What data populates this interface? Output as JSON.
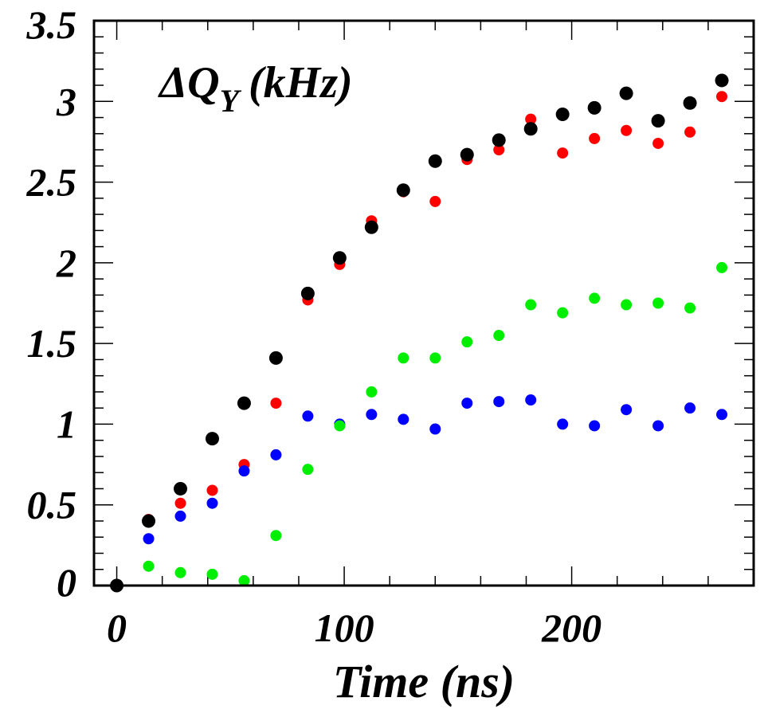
{
  "chart_data": {
    "type": "scatter",
    "title": "ΔQY (kHz)",
    "title_parts": {
      "delta": "Δ",
      "symbol": "Q",
      "subscript": "Y",
      "unit": "(kHz)"
    },
    "xlabel": "Time (ns)",
    "ylabel": "",
    "xlim": [
      -10,
      280
    ],
    "ylim": [
      0,
      3.5
    ],
    "xticks": [
      0,
      100,
      200
    ],
    "xtick_labels": [
      "0",
      "100",
      "200"
    ],
    "yticks": [
      0,
      0.5,
      1,
      1.5,
      2,
      2.5,
      3,
      3.5
    ],
    "ytick_labels": [
      "0",
      "0.5",
      "1",
      "1.5",
      "2",
      "2.5",
      "3",
      "3.5"
    ],
    "grid": false,
    "x": [
      0,
      14,
      28,
      42,
      56,
      70,
      84,
      98,
      112,
      126,
      140,
      154,
      168,
      182,
      196,
      210,
      224,
      238,
      252,
      266
    ],
    "series": [
      {
        "color": "#ff0000",
        "values": [
          0,
          0.41,
          0.51,
          0.59,
          0.75,
          1.13,
          1.77,
          1.99,
          2.26,
          2.44,
          2.38,
          2.64,
          2.7,
          2.89,
          2.68,
          2.77,
          2.82,
          2.74,
          2.81,
          3.03
        ]
      },
      {
        "color": "#0000ff",
        "values": [
          0,
          0.29,
          0.43,
          0.51,
          0.71,
          0.81,
          1.05,
          1.0,
          1.06,
          1.03,
          0.97,
          1.13,
          1.14,
          1.15,
          1.0,
          0.99,
          1.09,
          0.99,
          1.1,
          1.06
        ]
      },
      {
        "color": "#00ee00",
        "values": [
          0,
          0.12,
          0.08,
          0.07,
          0.03,
          0.31,
          0.72,
          0.99,
          1.2,
          1.41,
          1.41,
          1.51,
          1.55,
          1.74,
          1.69,
          1.78,
          1.74,
          1.75,
          1.72,
          1.97
        ]
      },
      {
        "color": "#000000",
        "values": [
          0,
          0.4,
          0.6,
          0.91,
          1.13,
          1.41,
          1.81,
          2.03,
          2.22,
          2.45,
          2.63,
          2.67,
          2.76,
          2.83,
          2.92,
          2.96,
          3.05,
          2.88,
          2.99,
          3.13
        ]
      }
    ]
  }
}
